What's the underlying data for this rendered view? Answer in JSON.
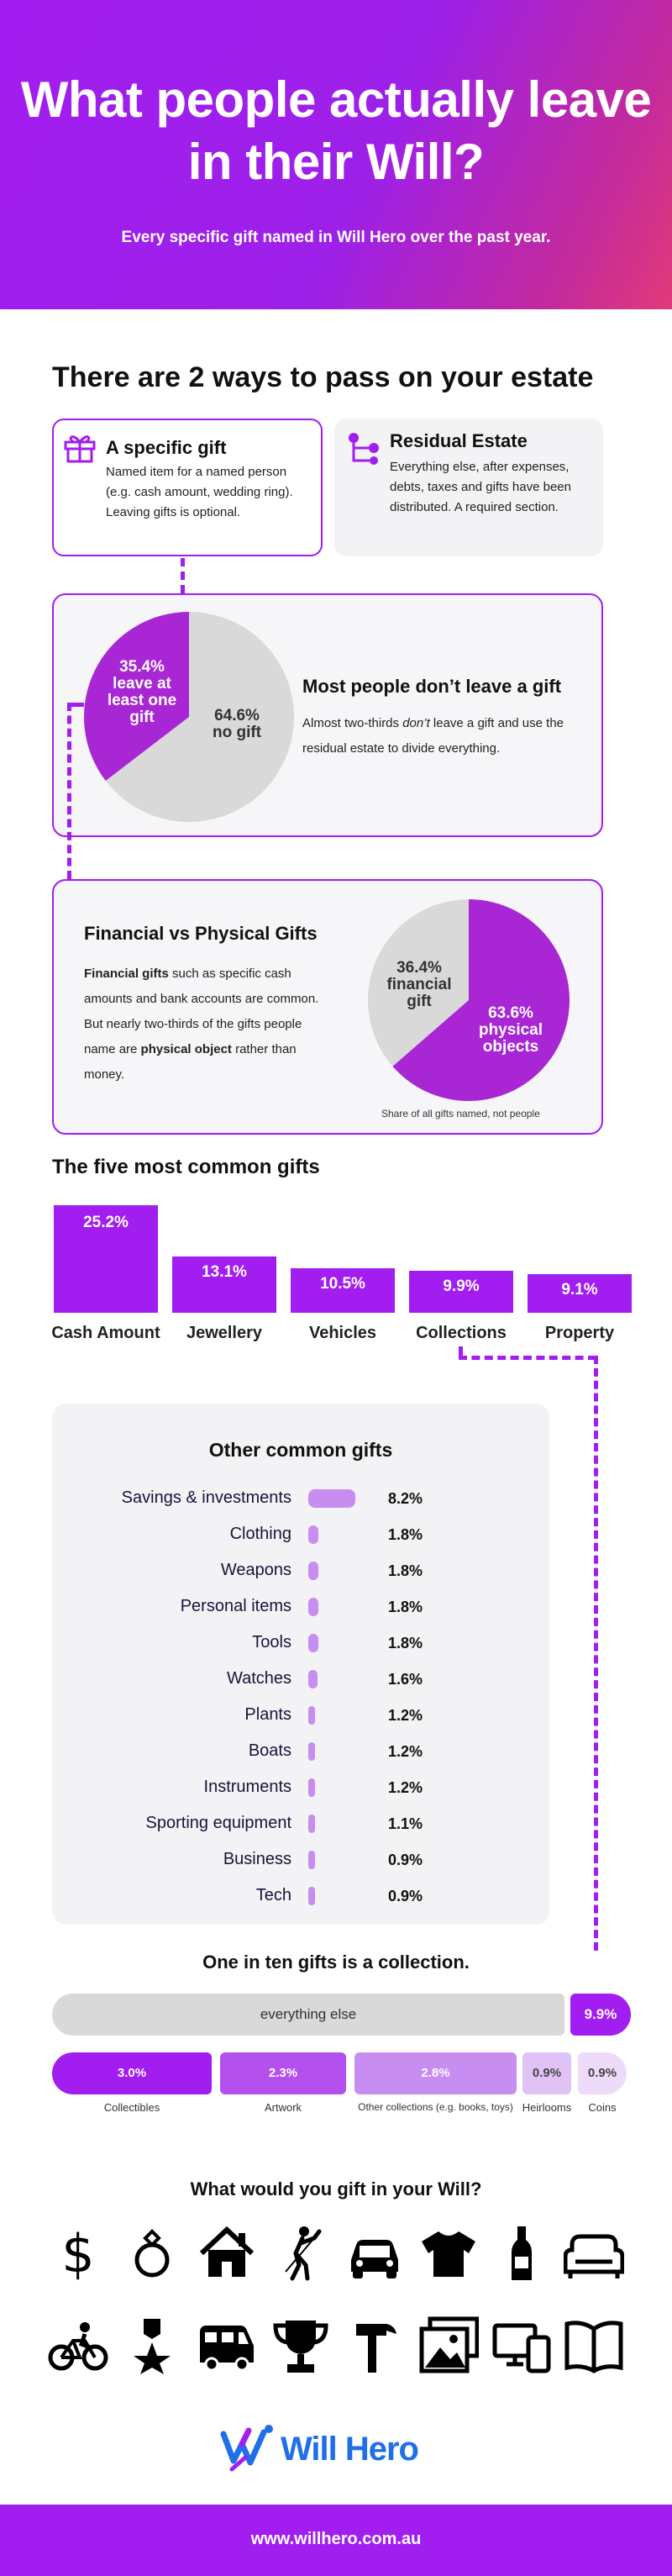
{
  "header": {
    "title": "What people actually leave in their Will?",
    "subtitle": "Every specific gift named in Will Hero over the past year."
  },
  "ways": {
    "heading": "There are 2 ways to pass on your estate",
    "specific": {
      "icon": "gift-icon",
      "title": "A specific gift",
      "description": "Named item for a named person (e.g. cash amount, wedding ring). Leaving gifts is optional."
    },
    "residual": {
      "icon": "hierarchy-icon",
      "title": "Residual Estate",
      "description": "Everything else, after expenses, debts, taxes and gifts have been distributed. A required section."
    }
  },
  "most_people": {
    "title": "Most people don’t leave a gift",
    "desc_before": "Almost two-thirds ",
    "desc_emph": "don’t",
    "desc_after": " leave a gift and use the residual estate to divide everything.",
    "slice_gift_pct": "35.4%",
    "slice_gift_text": "leave at least one gift",
    "slice_none_pct": "64.6%",
    "slice_none_text": "no gift"
  },
  "fin_phys": {
    "title": "Financial vs Physical Gifts",
    "p1_bold": "Financial gifts",
    "p1_rest": " such as specific cash amounts and bank accounts are common. But nearly two-thirds of the gifts people name are ",
    "p1_bold2": "physical object",
    "p1_end": " rather than money.",
    "slice_fin_pct": "36.4%",
    "slice_fin_text": "financial gift",
    "slice_phys_pct": "63.6%",
    "slice_phys_text": "physical objects",
    "note": "Share of all gifts named, not people"
  },
  "top5": {
    "heading": "The five most common gifts"
  },
  "other": {
    "heading": "Other common gifts"
  },
  "collections": {
    "heading": "One in ten gifts is a collection."
  },
  "icons_section": {
    "heading": "What would you gift in your Will?",
    "row1": [
      "dollar-icon",
      "ring-icon",
      "house-icon",
      "golfer-icon",
      "car-icon",
      "tshirt-icon",
      "bottle-icon",
      "sofa-icon"
    ],
    "row2": [
      "bicycle-icon",
      "medal-icon",
      "campervan-icon",
      "trophy-icon",
      "hammer-icon",
      "picture-icon",
      "devices-icon",
      "book-icon"
    ]
  },
  "brand": {
    "logo_text": "Will Hero",
    "logo_icon": "will-hero-logo-icon"
  },
  "footer": {
    "url": "www.willhero.com.au"
  },
  "colors": {
    "accent": "#a21df0",
    "accent_light": "#c78df0",
    "grey": "#d9d9d9",
    "brand_blue": "#1f6fe8"
  },
  "chart_data": [
    {
      "type": "pie",
      "categories": [
        "leave at least one gift",
        "no gift"
      ],
      "values": [
        35.4,
        64.6
      ]
    },
    {
      "type": "pie",
      "categories": [
        "physical objects",
        "financial gift"
      ],
      "values": [
        63.6,
        36.4
      ],
      "annotation": "Share of all gifts named, not people"
    },
    {
      "type": "bar",
      "title": "The five most common gifts",
      "categories": [
        "Cash Amount",
        "Jewellery",
        "Vehicles",
        "Collections",
        "Property"
      ],
      "values": [
        25.2,
        13.1,
        10.5,
        9.9,
        9.1
      ],
      "labels": [
        "25.2%",
        "13.1%",
        "10.5%",
        "9.9%",
        "9.1%"
      ]
    },
    {
      "type": "bar",
      "title": "Other common gifts",
      "categories": [
        "Savings & investments",
        "Clothing",
        "Weapons",
        "Personal items",
        "Tools",
        "Watches",
        "Plants",
        "Boats",
        "Instruments",
        "Sporting equipment",
        "Business",
        "Tech"
      ],
      "values": [
        8.2,
        1.8,
        1.8,
        1.8,
        1.8,
        1.6,
        1.2,
        1.2,
        1.2,
        1.1,
        0.9,
        0.9
      ],
      "labels": [
        "8.2%",
        "1.8%",
        "1.8%",
        "1.8%",
        "1.8%",
        "1.6%",
        "1.2%",
        "1.2%",
        "1.2%",
        "1.1%",
        "0.9%",
        "0.9%"
      ]
    },
    {
      "type": "bar",
      "title": "One in ten gifts is a collection.",
      "categories": [
        "everything else",
        "collections"
      ],
      "values": [
        90.1,
        9.9
      ],
      "labels": [
        "everything else",
        "9.9%"
      ]
    },
    {
      "type": "bar",
      "categories": [
        "Collectibles",
        "Artwork",
        "Other collections (e.g. books, toys)",
        "Heirlooms",
        "Coins"
      ],
      "values": [
        3.0,
        2.3,
        2.8,
        0.9,
        0.9
      ],
      "labels": [
        "3.0%",
        "2.3%",
        "2.8%",
        "0.9%",
        "0.9%"
      ]
    }
  ]
}
